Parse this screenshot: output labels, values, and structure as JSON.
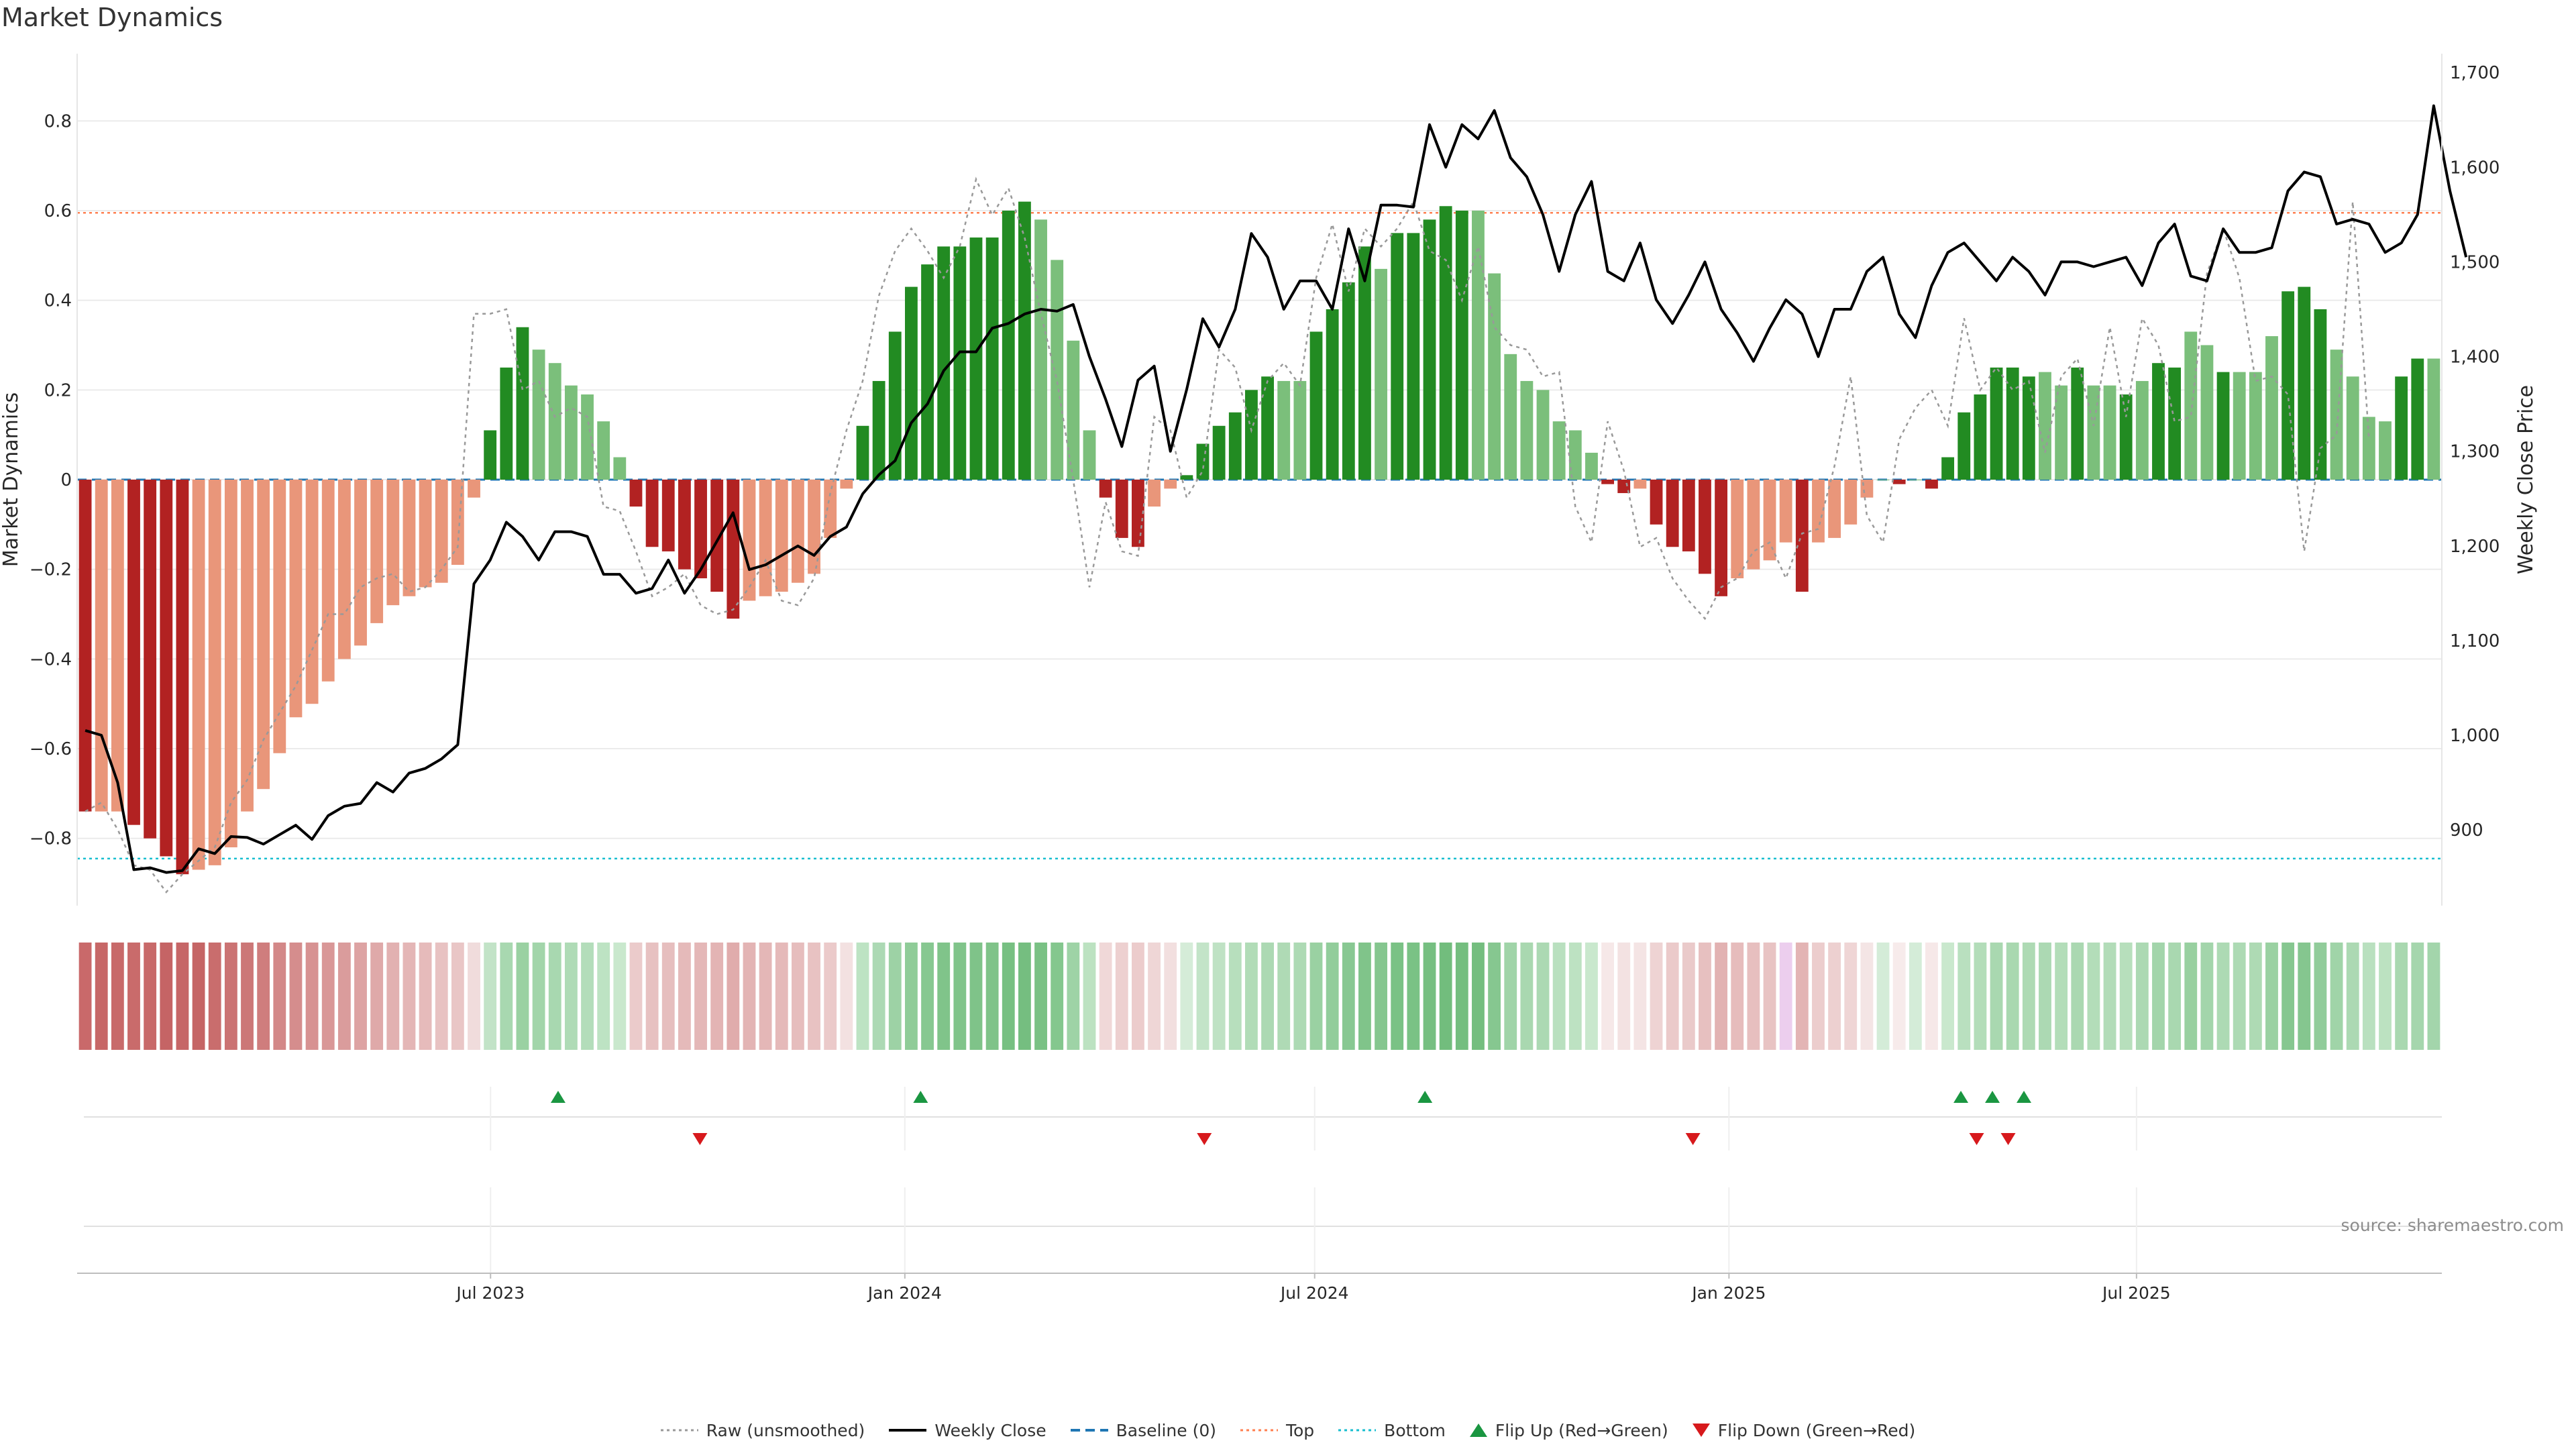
{
  "title": "Market Dynamics",
  "source": "source: sharemaestro.com",
  "colors": {
    "strong_red": "#b22222",
    "light_red": "#e9967a",
    "strong_green": "#228b22",
    "light_green": "#7bbf7b",
    "close_line": "#000000",
    "raw_line": "#999999",
    "baseline": "#1f77b4",
    "top_line": "#ff7f50",
    "bottom_line": "#17becf",
    "flip_up": "#1a9641",
    "flip_down": "#d7191c"
  },
  "legend": [
    {
      "label": "Raw (unsmoothed)",
      "icon": "dotted-line"
    },
    {
      "label": "Weekly Close",
      "icon": "solid-line"
    },
    {
      "label": "Baseline (0)",
      "icon": "dashed-line"
    },
    {
      "label": "Top",
      "icon": "dotted-line"
    },
    {
      "label": "Bottom",
      "icon": "dotted-line"
    },
    {
      "label": "Flip Up (Red→Green)",
      "icon": "triangle-up"
    },
    {
      "label": "Flip Down (Green→Red)",
      "icon": "triangle-down"
    }
  ],
  "chart_data": {
    "type": "bar",
    "title": "Market Dynamics",
    "xlabel": "",
    "ylabel": "Market Dynamics",
    "ylabel_right": "Weekly Close Price",
    "ylim": [
      -0.95,
      0.95
    ],
    "ylim_right": [
      820,
      1720
    ],
    "yticks": [
      "−0.8",
      "−0.6",
      "−0.4",
      "−0.2",
      "0",
      "0.2",
      "0.4",
      "0.6",
      "0.8"
    ],
    "ytick_values": [
      -0.8,
      -0.6,
      -0.4,
      -0.2,
      0,
      0.2,
      0.4,
      0.6,
      0.8
    ],
    "yticks_right": [
      "900",
      "1,000",
      "1,100",
      "1,200",
      "1,300",
      "1,400",
      "1,500",
      "1,600",
      "1,700"
    ],
    "ytick_right_values": [
      900,
      1000,
      1100,
      1200,
      1300,
      1400,
      1500,
      1600,
      1700
    ],
    "x_start": "2023-01-02",
    "x_end": "2025-11-10",
    "xticks": [
      "Jul 2023",
      "Jan 2024",
      "Jul 2024",
      "Jan 2025",
      "Jul 2025"
    ],
    "xtick_dates": [
      "2023-07-01",
      "2024-01-01",
      "2024-07-01",
      "2025-01-01",
      "2025-07-01"
    ],
    "top_level": 0.595,
    "bottom_level": -0.845,
    "baseline_level": 0,
    "grid": true,
    "legend_position": "bottom-center",
    "values": [
      -0.74,
      -0.74,
      -0.74,
      -0.77,
      -0.8,
      -0.84,
      -0.88,
      -0.87,
      -0.86,
      -0.82,
      -0.74,
      -0.69,
      -0.61,
      -0.53,
      -0.5,
      -0.45,
      -0.4,
      -0.37,
      -0.32,
      -0.28,
      -0.26,
      -0.24,
      -0.23,
      -0.19,
      -0.04,
      0.11,
      0.25,
      0.34,
      0.29,
      0.26,
      0.21,
      0.19,
      0.13,
      0.05,
      -0.06,
      -0.15,
      -0.16,
      -0.2,
      -0.22,
      -0.25,
      -0.31,
      -0.27,
      -0.26,
      -0.25,
      -0.23,
      -0.21,
      -0.13,
      -0.02,
      0.12,
      0.22,
      0.33,
      0.43,
      0.48,
      0.52,
      0.52,
      0.54,
      0.54,
      0.6,
      0.62,
      0.58,
      0.49,
      0.31,
      0.11,
      -0.04,
      -0.13,
      -0.15,
      -0.06,
      -0.02,
      0.01,
      0.08,
      0.12,
      0.15,
      0.2,
      0.23,
      0.22,
      0.22,
      0.33,
      0.38,
      0.44,
      0.52,
      0.47,
      0.55,
      0.55,
      0.58,
      0.61,
      0.6,
      0.6,
      0.46,
      0.28,
      0.22,
      0.2,
      0.13,
      0.11,
      0.06,
      -0.01,
      -0.03,
      -0.02,
      -0.1,
      -0.15,
      -0.16,
      -0.21,
      -0.26,
      -0.22,
      -0.2,
      -0.18,
      -0.14,
      -0.25,
      -0.14,
      -0.13,
      -0.1,
      -0.04,
      0.0,
      -0.01,
      0.0,
      -0.02,
      0.05,
      0.15,
      0.19,
      0.25,
      0.25,
      0.23,
      0.24,
      0.21,
      0.25,
      0.21,
      0.21,
      0.19,
      0.22,
      0.26,
      0.25,
      0.33,
      0.3,
      0.24,
      0.24,
      0.24,
      0.32,
      0.42,
      0.43,
      0.38,
      0.29,
      0.23,
      0.14,
      0.13,
      0.23,
      0.27,
      0.27
    ],
    "bar_shade": [
      "s",
      "l",
      "l",
      "s",
      "s",
      "s",
      "s",
      "l",
      "l",
      "l",
      "l",
      "l",
      "l",
      "l",
      "l",
      "l",
      "l",
      "l",
      "l",
      "l",
      "l",
      "l",
      "l",
      "l",
      "l",
      "s",
      "s",
      "s",
      "l",
      "l",
      "l",
      "l",
      "l",
      "l",
      "s",
      "s",
      "s",
      "s",
      "s",
      "s",
      "s",
      "l",
      "l",
      "l",
      "l",
      "l",
      "l",
      "l",
      "s",
      "s",
      "s",
      "s",
      "s",
      "s",
      "s",
      "s",
      "s",
      "s",
      "s",
      "l",
      "l",
      "l",
      "l",
      "s",
      "s",
      "s",
      "l",
      "l",
      "s",
      "s",
      "s",
      "s",
      "s",
      "s",
      "l",
      "l",
      "s",
      "s",
      "s",
      "s",
      "l",
      "s",
      "s",
      "s",
      "s",
      "s",
      "l",
      "l",
      "l",
      "l",
      "l",
      "l",
      "l",
      "l",
      "s",
      "s",
      "l",
      "s",
      "s",
      "s",
      "s",
      "s",
      "l",
      "l",
      "l",
      "l",
      "s",
      "l",
      "l",
      "l",
      "l",
      "l",
      "s",
      "l",
      "s",
      "s",
      "s",
      "s",
      "s",
      "s",
      "s",
      "l",
      "l",
      "s",
      "l",
      "l",
      "s",
      "l",
      "s",
      "s",
      "l",
      "l",
      "s",
      "l",
      "l",
      "l",
      "s",
      "s",
      "s",
      "l",
      "l",
      "l",
      "l",
      "s",
      "s",
      "l"
    ],
    "series": [
      {
        "name": "Raw (unsmoothed)",
        "values": [
          -0.74,
          -0.72,
          -0.78,
          -0.86,
          -0.87,
          -0.92,
          -0.88,
          -0.85,
          -0.82,
          -0.72,
          -0.67,
          -0.58,
          -0.52,
          -0.46,
          -0.38,
          -0.3,
          -0.3,
          -0.24,
          -0.22,
          -0.21,
          -0.25,
          -0.24,
          -0.2,
          -0.15,
          0.37,
          0.37,
          0.38,
          0.2,
          0.22,
          0.14,
          0.16,
          0.14,
          -0.06,
          -0.07,
          -0.16,
          -0.26,
          -0.24,
          -0.21,
          -0.28,
          -0.3,
          -0.29,
          -0.24,
          -0.18,
          -0.27,
          -0.28,
          -0.22,
          -0.03,
          0.11,
          0.22,
          0.41,
          0.51,
          0.56,
          0.51,
          0.45,
          0.52,
          0.67,
          0.59,
          0.65,
          0.54,
          0.37,
          0.22,
          0.0,
          -0.24,
          -0.05,
          -0.16,
          -0.17,
          0.14,
          0.11,
          -0.04,
          0.02,
          0.29,
          0.25,
          0.11,
          0.22,
          0.26,
          0.21,
          0.45,
          0.57,
          0.42,
          0.56,
          0.52,
          0.56,
          0.62,
          0.51,
          0.49,
          0.4,
          0.52,
          0.34,
          0.3,
          0.29,
          0.23,
          0.24,
          -0.06,
          -0.14,
          0.13,
          0.02,
          -0.15,
          -0.13,
          -0.22,
          -0.27,
          -0.31,
          -0.24,
          -0.22,
          -0.16,
          -0.14,
          -0.22,
          -0.12,
          -0.11,
          0.03,
          0.23,
          -0.08,
          -0.14,
          0.09,
          0.16,
          0.2,
          0.12,
          0.36,
          0.2,
          0.25,
          0.2,
          0.22,
          0.06,
          0.23,
          0.27,
          0.12,
          0.34,
          0.14,
          0.36,
          0.3,
          0.13,
          0.14,
          0.46,
          0.56,
          0.45,
          0.22,
          0.23,
          0.19,
          -0.16,
          0.07,
          0.1,
          0.62,
          0.09
        ]
      },
      {
        "name": "Weekly Close",
        "values": [
          1005,
          1000,
          950,
          858,
          860,
          855,
          857,
          880,
          875,
          893,
          892,
          885,
          895,
          905,
          890,
          915,
          925,
          928,
          950,
          940,
          960,
          965,
          975,
          990,
          1160,
          1185,
          1225,
          1210,
          1185,
          1215,
          1215,
          1210,
          1170,
          1170,
          1150,
          1155,
          1185,
          1150,
          1175,
          1205,
          1235,
          1175,
          1180,
          1190,
          1200,
          1190,
          1210,
          1220,
          1255,
          1275,
          1290,
          1330,
          1350,
          1385,
          1405,
          1405,
          1430,
          1435,
          1445,
          1450,
          1448,
          1455,
          1400,
          1355,
          1305,
          1375,
          1390,
          1300,
          1365,
          1440,
          1410,
          1450,
          1530,
          1505,
          1450,
          1480,
          1480,
          1450,
          1535,
          1480,
          1560,
          1560,
          1558,
          1645,
          1600,
          1645,
          1630,
          1660,
          1610,
          1590,
          1550,
          1490,
          1550,
          1585,
          1490,
          1480,
          1520,
          1460,
          1435,
          1465,
          1500,
          1450,
          1425,
          1395,
          1430,
          1460,
          1445,
          1400,
          1450,
          1450,
          1490,
          1505,
          1445,
          1420,
          1475,
          1510,
          1520,
          1500,
          1480,
          1505,
          1490,
          1465,
          1500,
          1500,
          1495,
          1500,
          1505,
          1475,
          1520,
          1540,
          1485,
          1480,
          1535,
          1510,
          1510,
          1515,
          1575,
          1595,
          1590,
          1540,
          1545,
          1540,
          1510,
          1520,
          1550,
          1665,
          1575,
          1505
        ]
      }
    ],
    "strip_colors": [
      "#c9696a",
      "#c76767",
      "#c86a6a",
      "#c96b6b",
      "#c86969",
      "#c56465",
      "#c66667",
      "#c56565",
      "#c96d6d",
      "#cb7373",
      "#cc7777",
      "#cf7d7d",
      "#d38888",
      "#d58d8d",
      "#d79292",
      "#d99797",
      "#da9c9c",
      "#dda3a3",
      "#dfa9a9",
      "#e2b1b1",
      "#e4b6b6",
      "#e6bbbb",
      "#e8c2c2",
      "#e9c6c6",
      "#f0dcdc",
      "#c2e3c7",
      "#a8d8b0",
      "#9ad1a2",
      "#a2d5aa",
      "#a8d8b0",
      "#afdbb6",
      "#b3ddba",
      "#bde3c3",
      "#c9e8cd",
      "#ebcbcb",
      "#e7c1c1",
      "#e6bebe",
      "#e5baba",
      "#e4b7b7",
      "#e3b4b4",
      "#e0acac",
      "#e3b4b4",
      "#e4b7b7",
      "#e5b9b9",
      "#e6bdbd",
      "#e8c2c2",
      "#ebcaca",
      "#f3e1e1",
      "#bde3c3",
      "#acd9b4",
      "#9dd2a5",
      "#8fcc98",
      "#87c891",
      "#80c48a",
      "#80c48a",
      "#7fc389",
      "#7fc389",
      "#77c082",
      "#75be80",
      "#79c184",
      "#84c78e",
      "#9ed3a6",
      "#bce2c1",
      "#f0d8d8",
      "#edd0d0",
      "#eccccc",
      "#efd6d6",
      "#f2dfdf",
      "#d5ecd8",
      "#c3e4c8",
      "#bfe2c4",
      "#b7dfbd",
      "#b1dcb7",
      "#acd9b3",
      "#afdab5",
      "#addab4",
      "#9ad1a2",
      "#92cd9b",
      "#88c892",
      "#80c48a",
      "#85c68f",
      "#7ac285",
      "#7ac285",
      "#76bf81",
      "#72bd7d",
      "#74be7f",
      "#74be7f",
      "#86c790",
      "#a0d4a8",
      "#a9d8b0",
      "#acd9b3",
      "#b9e0bf",
      "#bde2c2",
      "#c9e8cd",
      "#f6e8e8",
      "#f3e2e2",
      "#f4e4e4",
      "#eed3d3",
      "#ebcaca",
      "#eacaca",
      "#e7c0c0",
      "#e2b2b2",
      "#e6bcbc",
      "#e7bfbf",
      "#e8c3c3",
      "#ecceee",
      "#e3b4b4",
      "#eccdcd",
      "#edd0d0",
      "#efd5d5",
      "#f4e5e5",
      "#d4ecd8",
      "#f7ebeb",
      "#d4ecd8",
      "#f6e8e8",
      "#c9e8cd",
      "#b9e0bf",
      "#b3ddb9",
      "#a9d8b0",
      "#a9d8b0",
      "#aedab4",
      "#acd9b3",
      "#b3ddb9",
      "#aad8b1",
      "#b3ddb9",
      "#b2dcb8",
      "#b7dfbc",
      "#acd9b3",
      "#a3d5ab",
      "#a9d8b0",
      "#98d0a0",
      "#a3d5ab",
      "#addab4",
      "#addab4",
      "#aedab4",
      "#9ad1a2",
      "#86c790",
      "#85c68f",
      "#91cc9a",
      "#a0d4a8",
      "#acd9b3",
      "#b9e0bf",
      "#bce2c1",
      "#a9d8b0",
      "#a5d6ad",
      "#a3d5ab"
    ],
    "flip_up_dates": [
      "2023-07-31",
      "2024-01-08",
      "2024-08-19",
      "2025-04-14",
      "2025-04-28",
      "2025-05-12"
    ],
    "flip_down_dates": [
      "2023-10-02",
      "2024-05-13",
      "2024-12-16",
      "2025-04-21",
      "2025-05-05"
    ]
  }
}
